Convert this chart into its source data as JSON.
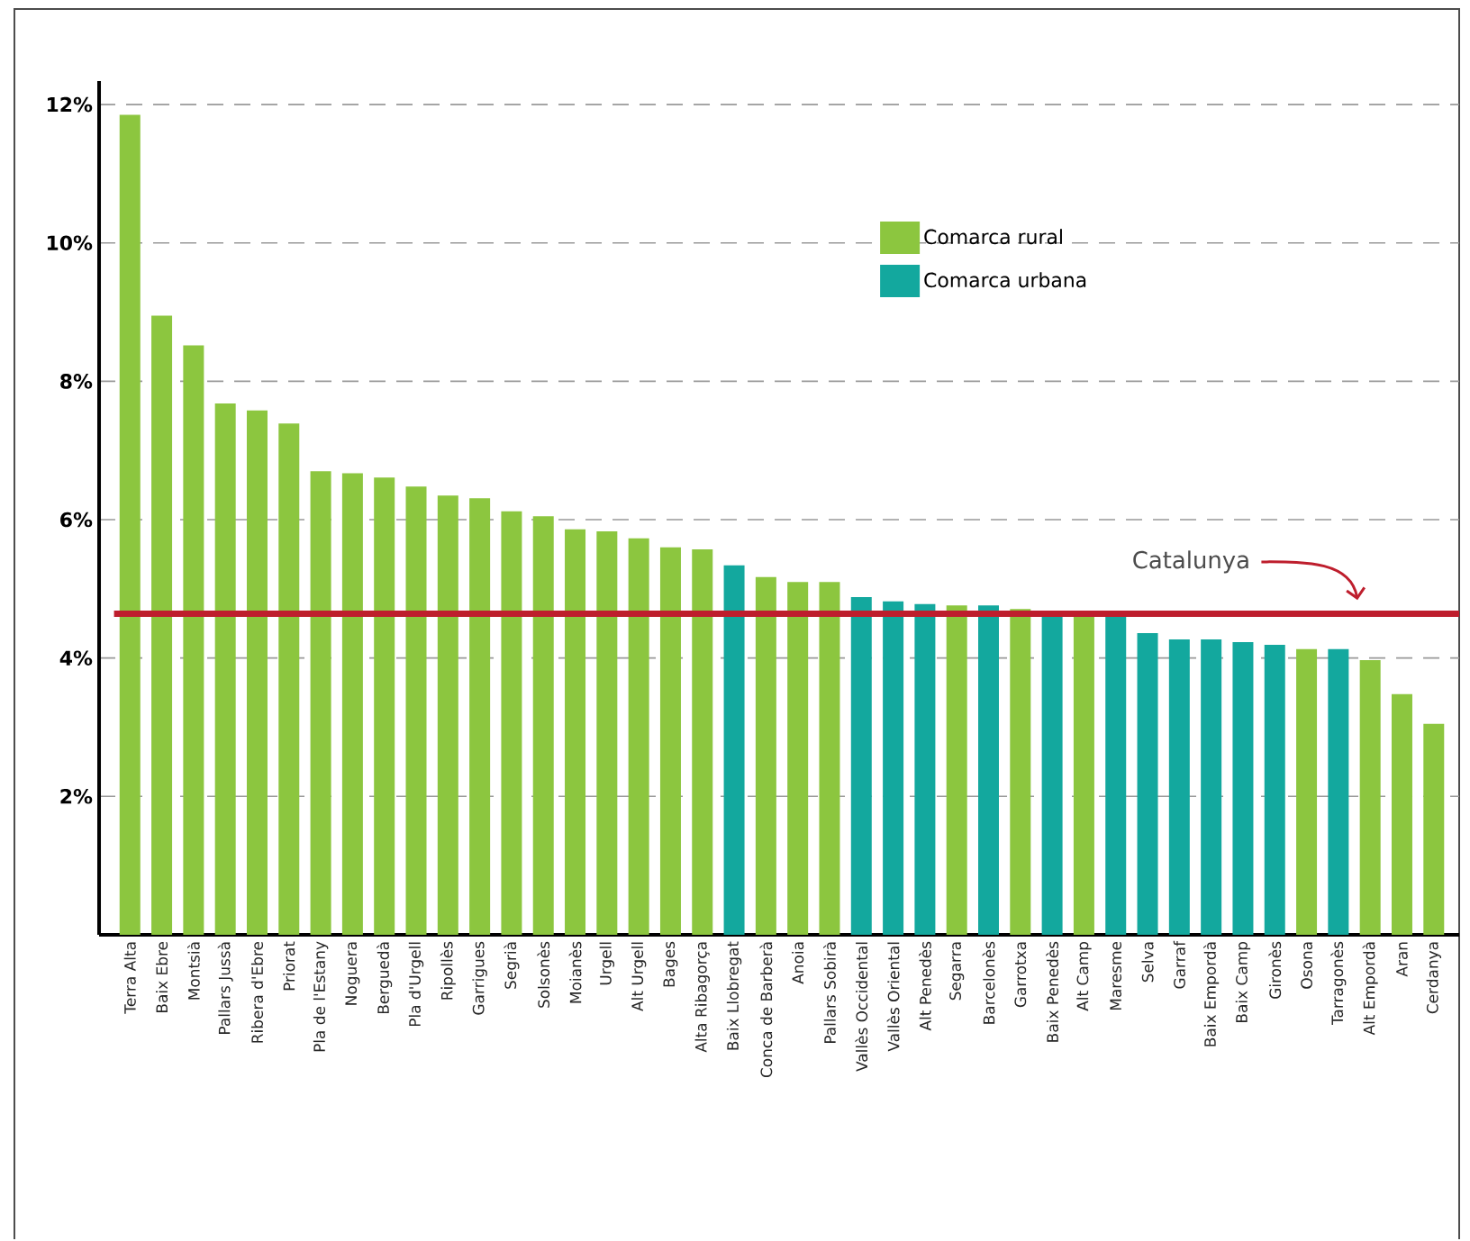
{
  "chart_data": {
    "type": "bar",
    "categories": [
      "Terra Alta",
      "Baix Ebre",
      "Montsià",
      "Pallars Jussà",
      "Ribera d'Ebre",
      "Priorat",
      "Pla de l'Estany",
      "Noguera",
      "Berguedà",
      "Pla d'Urgell",
      "Ripollès",
      "Garrigues",
      "Segrià",
      "Solsonès",
      "Moianès",
      "Urgell",
      "Alt Urgell",
      "Bages",
      "Alta Ribagorça",
      "Baix Llobregat",
      "Conca de Barberà",
      "Anoia",
      "Pallars Sobirà",
      "Vallès Occidental",
      "Vallès Oriental",
      "Alt Penedès",
      "Segarra",
      "Barcelonès",
      "Garrotxa",
      "Baix Penedès",
      "Alt Camp",
      "Maresme",
      "Selva",
      "Garraf",
      "Baix Empordà",
      "Baix Camp",
      "Gironès",
      "Osona",
      "Tarragonès",
      "Alt Empordà",
      "Aran",
      "Cerdanya"
    ],
    "series": [
      {
        "name": "Comarca rural",
        "color": "#8cc63f",
        "values": [
          11.85,
          8.95,
          8.52,
          7.68,
          7.58,
          7.39,
          6.7,
          6.67,
          6.61,
          6.48,
          6.35,
          6.31,
          6.12,
          6.05,
          5.86,
          5.83,
          5.73,
          5.6,
          5.57,
          null,
          5.17,
          5.1,
          5.1,
          null,
          null,
          null,
          4.76,
          null,
          4.71,
          null,
          4.62,
          null,
          null,
          null,
          null,
          null,
          null,
          4.13,
          null,
          3.97,
          3.48,
          3.05
        ]
      },
      {
        "name": "Comarca urbana",
        "color": "#13a89e",
        "values": [
          null,
          null,
          null,
          null,
          null,
          null,
          null,
          null,
          null,
          null,
          null,
          null,
          null,
          null,
          null,
          null,
          null,
          null,
          null,
          5.34,
          null,
          null,
          null,
          4.88,
          4.82,
          4.78,
          null,
          4.76,
          null,
          4.62,
          null,
          4.62,
          4.36,
          4.27,
          4.27,
          4.23,
          4.19,
          null,
          4.13,
          null,
          null,
          null
        ]
      }
    ],
    "ylim": [
      0,
      12.34
    ],
    "yticks": [
      {
        "value": 2,
        "label": "2%"
      },
      {
        "value": 4,
        "label": "4%"
      },
      {
        "value": 6,
        "label": "6%"
      },
      {
        "value": 8,
        "label": "8%"
      },
      {
        "value": 10,
        "label": "10%"
      },
      {
        "value": 12,
        "label": "12%"
      }
    ],
    "grid": "y",
    "legend": "top right",
    "ref_lines": [
      {
        "axis": "y",
        "value": 4.64,
        "label": "Catalunya",
        "color": "#be1e2d"
      }
    ]
  }
}
